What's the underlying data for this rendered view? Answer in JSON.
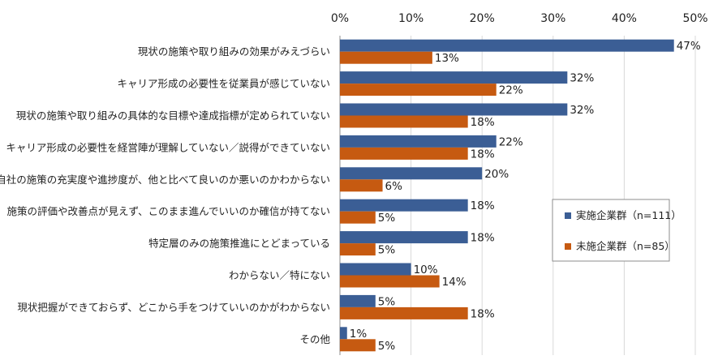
{
  "chart_data": {
    "type": "bar",
    "orientation": "horizontal",
    "categories": [
      "現状の施策や取り組みの効果がみえづらい",
      "キャリア形成の必要性を従業員が感じていない",
      "現状の施策や取り組みの具体的な目標や達成指標が定められていない",
      "キャリア形成の必要性を経営陣が理解していない／説得ができていない",
      "自社の施策の充実度や進捗度が、他と比べて良いのか悪いのかわからない",
      "施策の評価や改善点が見えず、このまま進んでいいのか確信が持てない",
      "特定層のみの施策推進にとどまっている",
      "わからない／特にない",
      "現状把握ができておらず、どこから手をつけていいのかがわからない",
      "その他"
    ],
    "series": [
      {
        "name": "実施企業群（n=111）",
        "color": "#3B5E95",
        "values": [
          47,
          32,
          32,
          22,
          20,
          18,
          18,
          10,
          5,
          1
        ]
      },
      {
        "name": "未施企業群（n=85）",
        "color": "#C65A11",
        "values": [
          13,
          22,
          18,
          18,
          6,
          5,
          5,
          14,
          18,
          5
        ]
      }
    ],
    "xlim": [
      0,
      50
    ],
    "ticks": [
      "0%",
      "10%",
      "20%",
      "30%",
      "40%",
      "50%"
    ],
    "value_suffix": "%",
    "xaxis_position": "top",
    "grid": true,
    "legend_position": "right"
  }
}
